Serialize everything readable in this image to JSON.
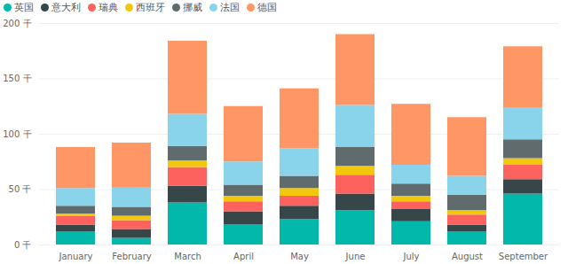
{
  "chart_data": {
    "type": "bar",
    "stacked": true,
    "grid": true,
    "legend": "top-left",
    "categories": [
      "January",
      "February",
      "March",
      "April",
      "May",
      "June",
      "July",
      "August",
      "September"
    ],
    "series": [
      {
        "name": "英国",
        "color": "#01B8AA",
        "values": [
          12000,
          6000,
          38000,
          18000,
          23000,
          31000,
          21000,
          12000,
          46000
        ]
      },
      {
        "name": "意大利",
        "color": "#374649",
        "values": [
          6000,
          8000,
          15000,
          12000,
          12000,
          15000,
          11000,
          6000,
          13000
        ]
      },
      {
        "name": "瑞典",
        "color": "#FD625E",
        "values": [
          8000,
          8000,
          17000,
          9000,
          9000,
          17000,
          7000,
          9000,
          13000
        ]
      },
      {
        "name": "西班牙",
        "color": "#F2C80F",
        "values": [
          2000,
          4000,
          6000,
          5000,
          7000,
          8000,
          5000,
          4000,
          6000
        ]
      },
      {
        "name": "挪威",
        "color": "#5F6B6D",
        "values": [
          7000,
          8000,
          13000,
          10000,
          11000,
          17000,
          11000,
          14000,
          17000
        ]
      },
      {
        "name": "法国",
        "color": "#8AD4EB",
        "values": [
          16000,
          18000,
          29000,
          21000,
          25000,
          38000,
          17000,
          17000,
          29000
        ]
      },
      {
        "name": "德国",
        "color": "#FE9666",
        "values": [
          37000,
          40000,
          66000,
          50000,
          54000,
          64000,
          55000,
          53000,
          55000
        ]
      }
    ],
    "ylim": [
      0,
      200000
    ],
    "yticks": [
      {
        "value": 0,
        "label": "0 千"
      },
      {
        "value": 50000,
        "label": "50 千"
      },
      {
        "value": 100000,
        "label": "100 千"
      },
      {
        "value": 150000,
        "label": "150 千"
      },
      {
        "value": 200000,
        "label": "200 千"
      }
    ]
  }
}
